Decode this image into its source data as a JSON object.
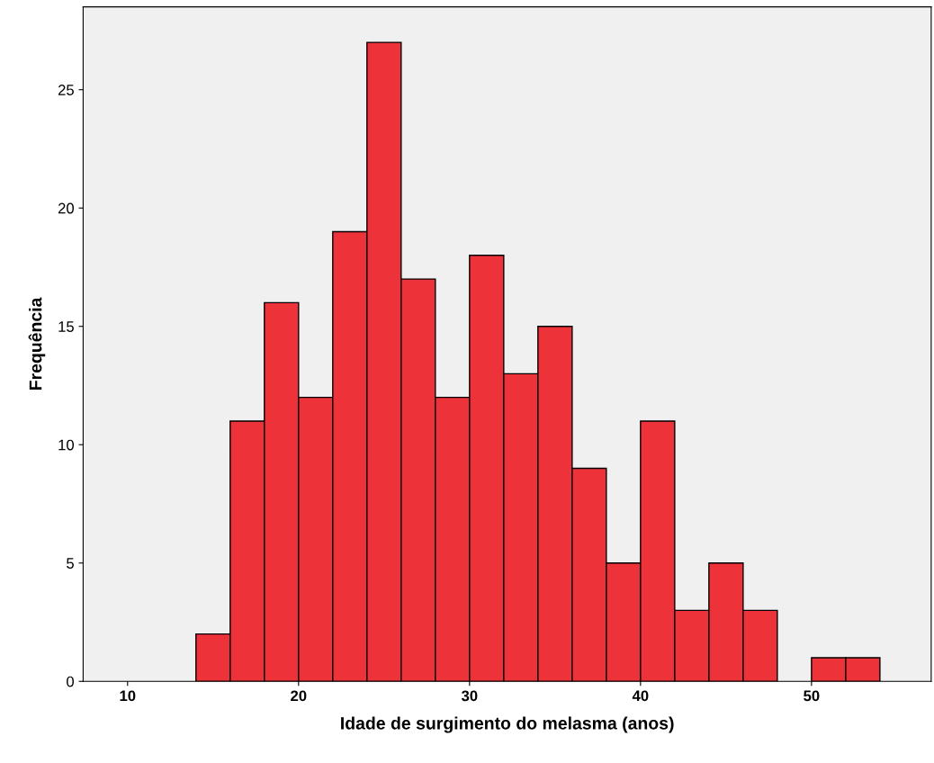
{
  "chart_data": {
    "type": "histogram",
    "xlabel": "Idade de surgimento do melasma (anos)",
    "ylabel": "Frequência",
    "bins": [
      14,
      16,
      18,
      20,
      22,
      24,
      26,
      28,
      30,
      32,
      34,
      36,
      38,
      40,
      42,
      44,
      46,
      48,
      50,
      52,
      54
    ],
    "values": [
      2,
      11,
      16,
      12,
      19,
      27,
      17,
      12,
      18,
      13,
      15,
      9,
      5,
      11,
      3,
      5,
      3,
      0,
      1,
      1
    ],
    "color": "#ee3239",
    "xlim": [
      7.4,
      57
    ],
    "xticks": [
      10,
      20,
      30,
      40,
      50
    ],
    "ylim": [
      0,
      28.5
    ],
    "yticks": [
      0,
      5,
      10,
      15,
      20,
      25
    ],
    "grid": false
  }
}
